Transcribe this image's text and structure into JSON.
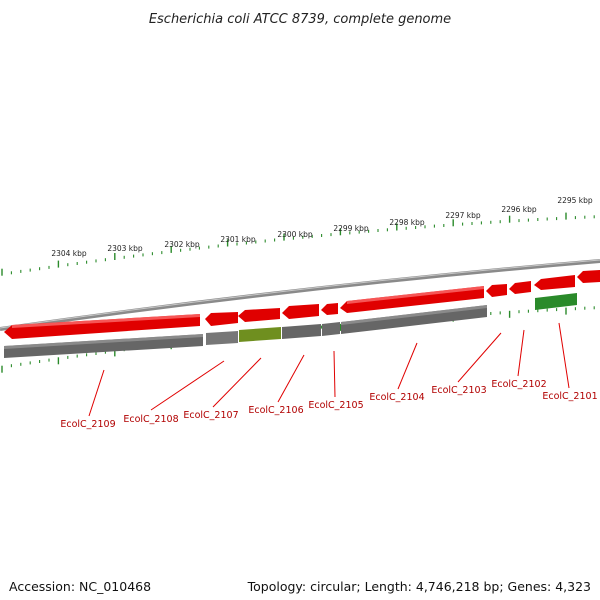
{
  "title": "Escherichia coli ATCC 8739, complete genome",
  "footer": {
    "accession": "Accession: NC_010468",
    "summary": "Topology: circular; Length: 4,746,218 bp; Genes: 4,323"
  },
  "scale_ticks": [
    "2304 kbp",
    "2303 kbp",
    "2302 kbp",
    "2301 kbp",
    "2300 kbp",
    "2299 kbp",
    "2298 kbp",
    "2297 kbp",
    "2296 kbp",
    "2295 kbp"
  ],
  "gene_labels": [
    "EcolC_2109",
    "EcolC_2108",
    "EcolC_2107",
    "EcolC_2106",
    "EcolC_2105",
    "EcolC_2104",
    "EcolC_2103",
    "EcolC_2102",
    "EcolC_2101"
  ],
  "colors": {
    "gene": "#e00000",
    "gene_highlight": "#ff6a6a",
    "cds": "#666666",
    "cds_light": "#8a8a8a",
    "rna_green": "#2a8a2a",
    "rna_olive": "#6f8f1f",
    "tick": "#2a8a2a",
    "label": "#b10000",
    "backbone": "#8a8a8a"
  }
}
